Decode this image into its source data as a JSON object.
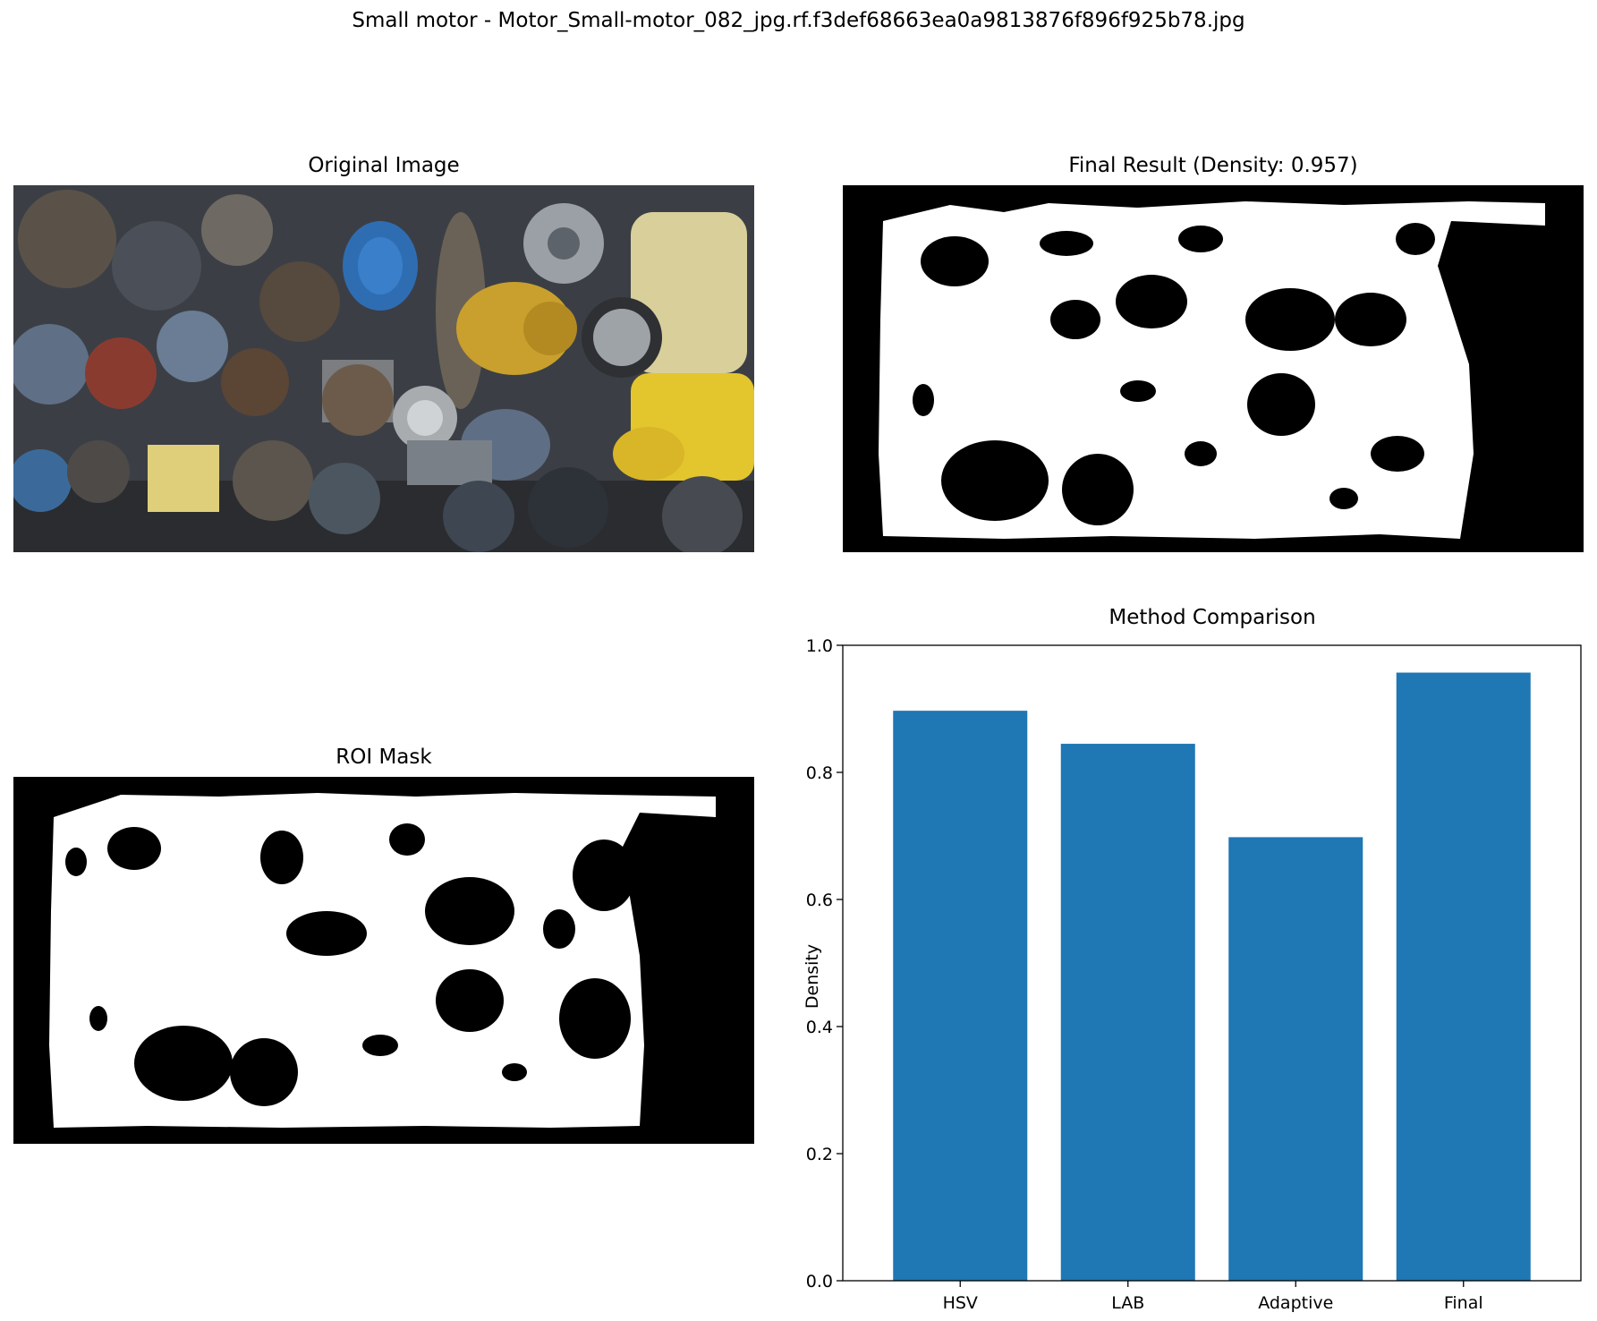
{
  "figure": {
    "title": "Small motor - Motor_Small-motor_082_jpg.rf.f3def68663ea0a9813876f896f925b78.jpg"
  },
  "panels": {
    "original_title": "Original Image",
    "final_title": "Final Result (Density: 0.957)",
    "roi_title": "ROI Mask"
  },
  "colors": {
    "bar": "#1f77b4",
    "mask_fg": "#ffffff",
    "mask_bg": "#000000"
  },
  "chart_data": {
    "type": "bar",
    "title": "Method Comparison",
    "xlabel": "",
    "ylabel": "Density",
    "categories": [
      "HSV",
      "LAB",
      "Adaptive",
      "Final"
    ],
    "values": [
      0.897,
      0.845,
      0.698,
      0.957
    ],
    "ylim": [
      0,
      1.0
    ],
    "yticks": [
      0.0,
      0.2,
      0.4,
      0.6,
      0.8,
      1.0
    ],
    "ytick_labels": [
      "0.0",
      "0.2",
      "0.4",
      "0.6",
      "0.8",
      "1.0"
    ],
    "grid": false,
    "legend": "none"
  }
}
